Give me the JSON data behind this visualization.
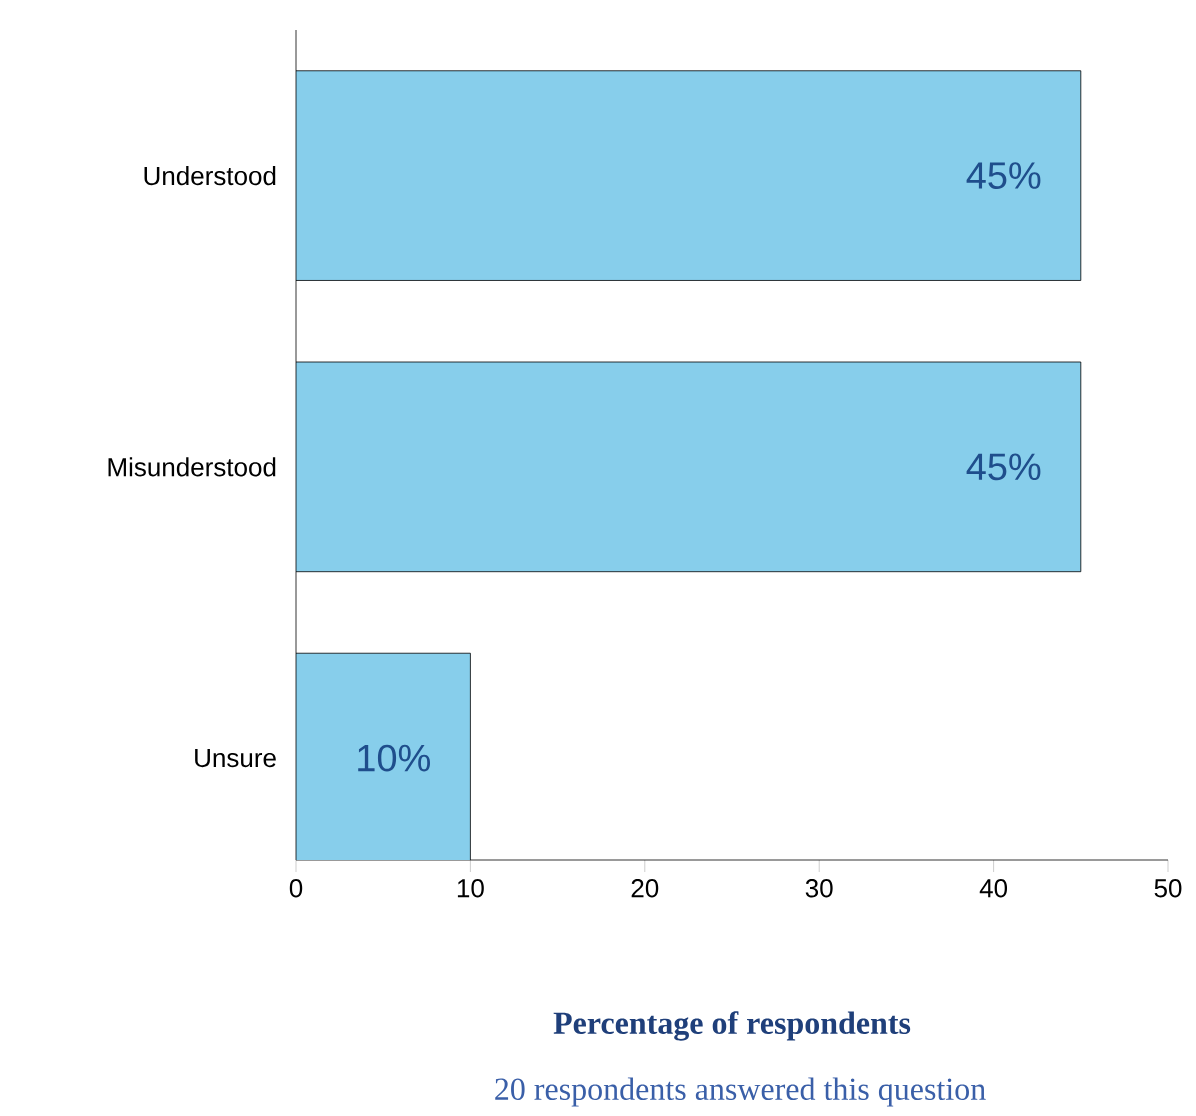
{
  "chart_data": {
    "type": "bar",
    "orientation": "horizontal",
    "categories": [
      "Understood",
      "Misunderstood",
      "Unsure"
    ],
    "values": [
      45,
      45,
      10
    ],
    "color": "#87ceeb",
    "value_labels": [
      "45%",
      "45%",
      "10%"
    ],
    "xlim": [
      0,
      50
    ],
    "xticks": [
      0,
      10,
      20,
      30,
      40,
      50
    ],
    "xlabel": "Percentage of respondents",
    "annotations": [
      "20 respondents answered this question"
    ],
    "grid": false
  }
}
